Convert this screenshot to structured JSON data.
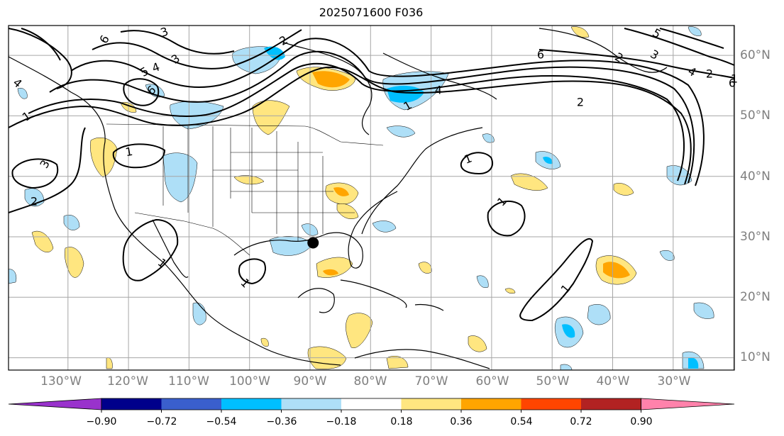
{
  "title": "2025071600 F036",
  "lon_labels": [
    "130°W",
    "120°W",
    "110°W",
    "100°W",
    "90°W",
    "80°W",
    "70°W",
    "60°W",
    "50°W",
    "40°W",
    "30°W"
  ],
  "lat_labels": [
    "60°N",
    "50°N",
    "40°N",
    "30°N",
    "20°N",
    "10°N"
  ],
  "colorbar": {
    "tick_labels": [
      "−0.90",
      "−0.72",
      "−0.54",
      "−0.36",
      "−0.18",
      "0.18",
      "0.36",
      "0.54",
      "0.72",
      "0.90"
    ],
    "levels": [
      -0.9,
      -0.72,
      -0.54,
      -0.36,
      -0.18,
      0.18,
      0.36,
      0.54,
      0.72,
      0.9
    ],
    "colors": [
      "#9932cc",
      "#00008b",
      "#3a5fcd",
      "#00bfff",
      "#aedff7",
      "#ffffff",
      "#ffe680",
      "#ffa500",
      "#ff4500",
      "#b22222",
      "#ff82ab"
    ]
  },
  "contour_labels": [
    "1",
    "1",
    "1",
    "1",
    "1",
    "1",
    "1",
    "1",
    "1",
    "2",
    "2",
    "2",
    "2",
    "2",
    "3",
    "3",
    "3",
    "3",
    "4",
    "4",
    "4",
    "4",
    "5",
    "5",
    "6",
    "6",
    "6",
    "6"
  ],
  "marker": {
    "label": "storm-center",
    "lon": -89.5,
    "lat": 29.0
  }
}
